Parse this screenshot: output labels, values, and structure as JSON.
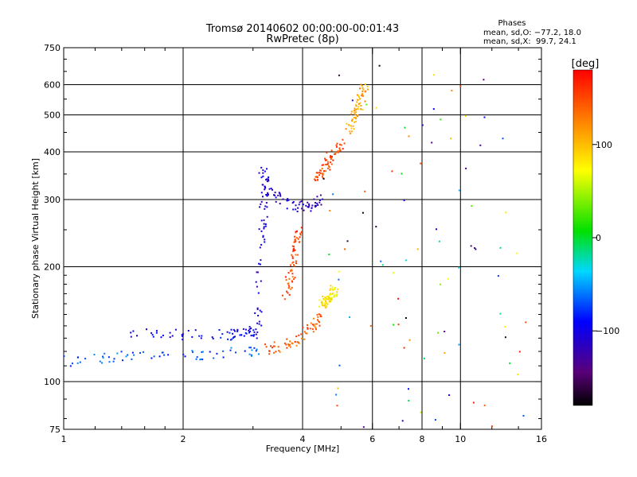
{
  "chart_data": {
    "type": "scatter",
    "title": "Tromsø 20140602 00:00:00-00:01:43",
    "subtitle": "RwPretec (8p)",
    "xlabel": "Frequency [MHz]",
    "ylabel": "Stationary phase Virtual Height [km]",
    "x_scale": "log2",
    "y_scale": "log",
    "xlim": [
      1,
      16
    ],
    "ylim": [
      75,
      750
    ],
    "x_ticks": [
      1,
      2,
      4,
      6,
      8,
      10,
      16
    ],
    "x_tick_labels": [
      "1",
      "2",
      "4",
      "6",
      "8",
      "10",
      "16"
    ],
    "x_minor_ticks": [
      1.2,
      1.4,
      1.6,
      1.8,
      3,
      5,
      7,
      9,
      12,
      14
    ],
    "x_gridlines": [
      2,
      4,
      6,
      8,
      10
    ],
    "y_ticks": [
      75,
      100,
      200,
      300,
      400,
      500,
      600,
      750
    ],
    "y_tick_labels": [
      "75",
      "100",
      "200",
      "300",
      "400",
      "500",
      "600",
      "750"
    ],
    "y_gridlines": [
      100,
      200,
      300,
      400,
      500,
      600
    ],
    "grid": true,
    "phases": {
      "heading": "Phases",
      "line_o": "mean, sd,O: −77.2, 18.0",
      "line_x": "mean, sd,X:  99.7, 24.1"
    },
    "colorbar": {
      "label": "[deg]",
      "range": [
        -180,
        180
      ],
      "ticks": [
        100,
        0,
        -100
      ],
      "tick_labels": [
        "100",
        "0",
        "−100"
      ],
      "colormap": "rainbow"
    },
    "traces": [
      {
        "name": "",
        "x": [
          1.0,
          1.1,
          1.2,
          1.3,
          1.4,
          1.6,
          1.8,
          2.0,
          2.3,
          2.6,
          2.9,
          3.05
        ],
        "y": [
          114,
          114,
          115,
          116,
          118,
          119,
          119,
          118,
          118,
          119,
          120,
          122
        ],
        "phase": -70
      },
      {
        "name": "",
        "x": [
          1.45,
          1.8,
          2.1,
          2.5,
          2.8,
          3.0
        ],
        "y": [
          135,
          134,
          133,
          133,
          134,
          136
        ],
        "phase": -95
      },
      {
        "name": "",
        "x": [
          3.05,
          3.1,
          3.14,
          3.17,
          3.2,
          3.22
        ],
        "y": [
          125,
          170,
          220,
          270,
          320,
          360
        ],
        "phase": -105
      },
      {
        "name": "",
        "x": [
          3.2,
          3.6,
          3.9,
          4.2,
          4.4
        ],
        "y": [
          122,
          125,
          130,
          140,
          150
        ],
        "phase": 140
      },
      {
        "name": "",
        "x": [
          3.6,
          3.8,
          3.9
        ],
        "y": [
          165,
          210,
          250
        ],
        "phase": 150
      },
      {
        "name": "",
        "x": [
          4.45,
          4.6,
          4.8
        ],
        "y": [
          160,
          165,
          175
        ],
        "phase": 80
      },
      {
        "name": "",
        "x": [
          3.15,
          3.3,
          3.6,
          3.9,
          4.2,
          4.5
        ],
        "y": [
          360,
          315,
          295,
          288,
          290,
          305
        ],
        "phase": -110
      },
      {
        "name": "",
        "x": [
          4.3,
          4.5,
          4.7,
          5.0
        ],
        "y": [
          340,
          360,
          390,
          420
        ],
        "phase": 150
      },
      {
        "name": "",
        "x": [
          5.2,
          5.5,
          5.7
        ],
        "y": [
          450,
          520,
          600
        ],
        "phase": 110
      }
    ],
    "scatter_count": 600
  }
}
